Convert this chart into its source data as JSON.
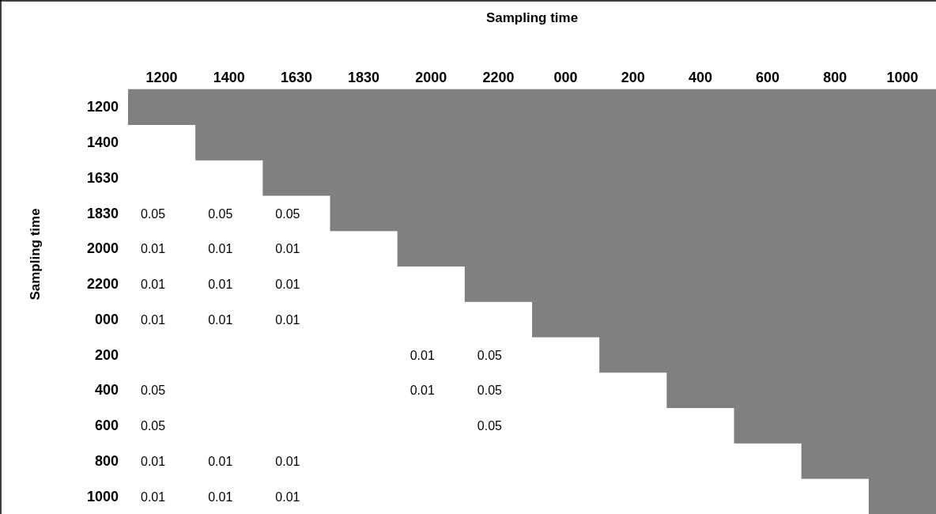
{
  "chart_data": {
    "type": "heatmap",
    "xlabel": "Sampling time",
    "ylabel": "Sampling time",
    "data_labels": true,
    "categories": [
      "1200",
      "1400",
      "1630",
      "1830",
      "2000",
      "2200",
      "000",
      "200",
      "400",
      "600",
      "800",
      "1000"
    ],
    "y_categories": [
      "1200",
      "1400",
      "1630",
      "1830",
      "2000",
      "2200",
      "000",
      "200",
      "400",
      "600",
      "800",
      "1000"
    ],
    "cells": [
      [
        null,
        null,
        null,
        null,
        null,
        null,
        null,
        null,
        null,
        null,
        null,
        null
      ],
      [
        null,
        null,
        null,
        null,
        null,
        null,
        null,
        null,
        null,
        null,
        null,
        null
      ],
      [
        null,
        null,
        null,
        null,
        null,
        null,
        null,
        null,
        null,
        null,
        null,
        null
      ],
      [
        0.05,
        0.05,
        0.05,
        null,
        null,
        null,
        null,
        null,
        null,
        null,
        null,
        null
      ],
      [
        0.01,
        0.01,
        0.01,
        null,
        null,
        null,
        null,
        null,
        null,
        null,
        null,
        null
      ],
      [
        0.01,
        0.01,
        0.01,
        null,
        null,
        null,
        null,
        null,
        null,
        null,
        null,
        null
      ],
      [
        0.01,
        0.01,
        0.01,
        null,
        null,
        null,
        null,
        null,
        null,
        null,
        null,
        null
      ],
      [
        null,
        null,
        null,
        null,
        0.01,
        0.05,
        null,
        null,
        null,
        null,
        null,
        null
      ],
      [
        0.05,
        null,
        null,
        null,
        0.01,
        0.05,
        null,
        null,
        null,
        null,
        null,
        null
      ],
      [
        0.05,
        null,
        null,
        null,
        null,
        0.05,
        null,
        null,
        null,
        null,
        null,
        null
      ],
      [
        0.01,
        0.01,
        0.01,
        null,
        null,
        null,
        null,
        null,
        null,
        null,
        null,
        null
      ],
      [
        0.01,
        0.01,
        0.01,
        null,
        null,
        null,
        null,
        null,
        null,
        null,
        null,
        null
      ]
    ]
  }
}
